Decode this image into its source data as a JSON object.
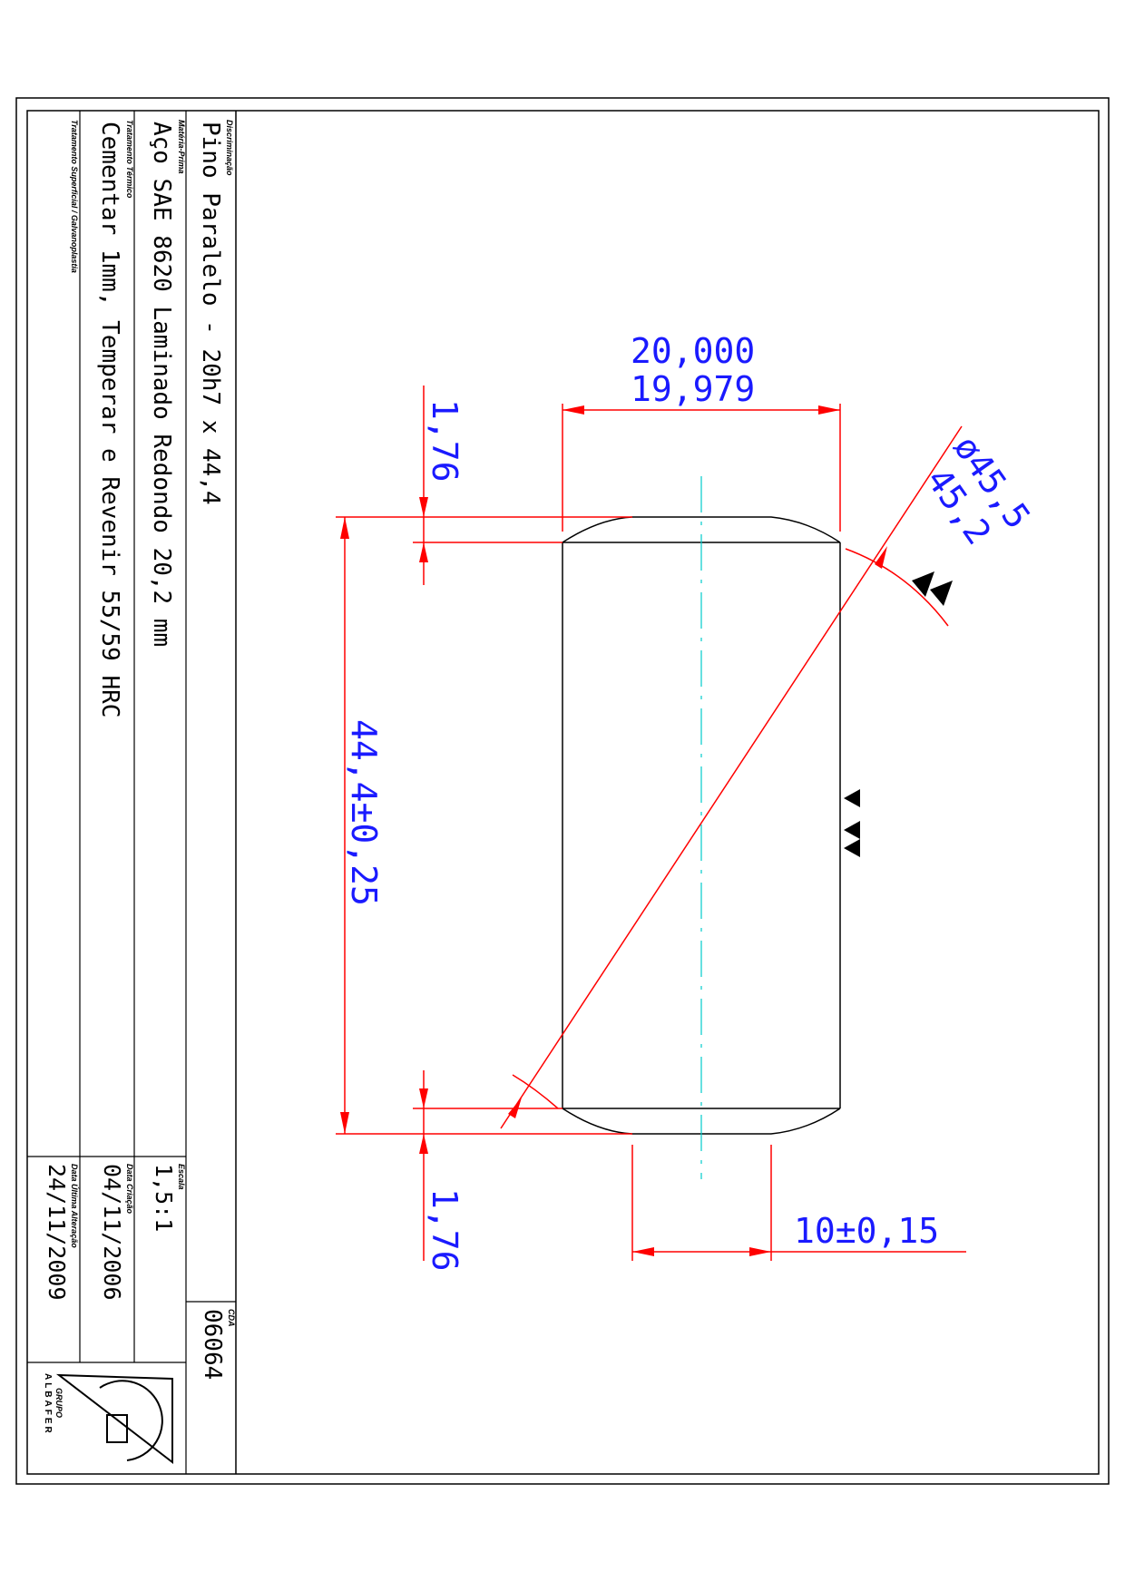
{
  "title_block": {
    "description_label": "Discriminação",
    "description": "Pino Paralelo - 20h7 x 44,4",
    "material_label": "Matéria-Prima",
    "material": "Aço SAE 8620 Laminado Redondo 20,2 mm",
    "heat_label": "Tratamento Térmico",
    "heat_treatment": "Cementar 1mm, Temperar e Revenir 55/59 HRC",
    "surface_label": "Tratamento Superficial / Galvanoplastia",
    "surface_treatment": "",
    "scale_label": "Escala",
    "scale": "1,5:1",
    "created_label": "Data Criação",
    "created": "04/11/2006",
    "modified_label": "Data Última Alteração",
    "modified": "24/11/2009",
    "code_label": "CDA",
    "code": "06064",
    "logo_text": "ALBAFER",
    "logo_small_text": "GRUPO"
  },
  "dimensions": {
    "dia_upper": "20,000",
    "dia_lower": "19,979",
    "chamfer_top": "1,76",
    "chamfer_bottom": "1,76",
    "length": "44,4±0,25",
    "crown_len": "10±0,15",
    "radius_upper": "ø45,5",
    "radius_lower": "45,2"
  },
  "colors": {
    "outline": "#000000",
    "dimension_line": "#ff0000",
    "dimension_text": "#1a1aff",
    "center_line": "#00cccc"
  }
}
